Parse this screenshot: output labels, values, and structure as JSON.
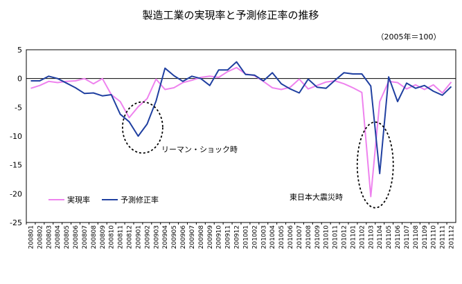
{
  "chart_data": {
    "type": "line",
    "title": "製造工業の実現率と予測修正率の推移",
    "subtitle": "（2005年＝100）",
    "ylim": [
      -25,
      5
    ],
    "yticks": [
      5,
      0,
      -5,
      -10,
      -15,
      -20,
      -25
    ],
    "grid": false,
    "legend": "bottom-left",
    "x": [
      "200801",
      "200802",
      "200803",
      "200804",
      "200805",
      "200806",
      "200807",
      "200808",
      "200809",
      "200810",
      "200811",
      "200812",
      "200901",
      "200902",
      "200903",
      "200904",
      "200905",
      "200906",
      "200907",
      "200908",
      "200909",
      "200910",
      "200911",
      "200912",
      "201001",
      "201002",
      "201003",
      "201004",
      "201005",
      "201006",
      "201007",
      "201008",
      "201009",
      "201010",
      "201011",
      "201012",
      "201101",
      "201102",
      "201103",
      "201104",
      "201105",
      "201106",
      "201107",
      "201108",
      "201109",
      "201110",
      "201111",
      "201112"
    ],
    "series": [
      {
        "name": "実現率",
        "color": "#ee82ee",
        "values": [
          -1.7,
          -1.2,
          -0.5,
          -0.7,
          -0.5,
          -0.4,
          0.0,
          -0.9,
          0.0,
          -2.8,
          -4.0,
          -6.8,
          -4.9,
          -3.5,
          -0.1,
          -1.9,
          -1.6,
          -0.7,
          -0.3,
          0.2,
          0.4,
          0.2,
          1.2,
          1.9,
          0.8,
          0.5,
          -0.5,
          -1.6,
          -1.9,
          -1.5,
          -0.1,
          -1.8,
          -1.2,
          -0.6,
          -0.4,
          -0.9,
          -1.6,
          -2.4,
          -20.5,
          -4.0,
          -0.5,
          -0.7,
          -1.8,
          -1.1,
          -1.9,
          -1.1,
          -2.5,
          -0.6
        ]
      },
      {
        "name": "予測修正率",
        "color": "#1f3fa0",
        "values": [
          -0.4,
          -0.4,
          0.4,
          0.0,
          -0.8,
          -1.6,
          -2.6,
          -2.5,
          -3.0,
          -2.8,
          -6.2,
          -7.5,
          -10.0,
          -7.9,
          -3.9,
          1.8,
          0.5,
          -0.5,
          0.4,
          0.0,
          -1.2,
          1.5,
          1.5,
          2.9,
          0.7,
          0.6,
          -0.4,
          1.0,
          -0.9,
          -1.8,
          -2.5,
          -0.1,
          -1.5,
          -1.7,
          -0.3,
          1.0,
          0.8,
          0.8,
          -1.3,
          -16.5,
          0.3,
          -4.0,
          -0.8,
          -1.7,
          -1.2,
          -2.2,
          -2.9,
          -1.4
        ]
      }
    ],
    "annotations": [
      "リーマン・ショック時",
      "東日本大震災時"
    ]
  }
}
